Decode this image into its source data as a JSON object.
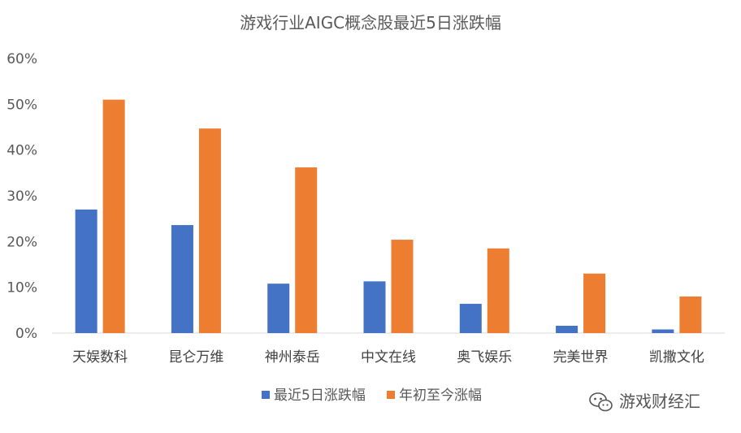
{
  "chart_data": {
    "type": "bar",
    "title": "游戏行业AIGC概念股最近5日涨跌幅",
    "categories": [
      "天娱数科",
      "昆仑万维",
      "神州泰岳",
      "中文在线",
      "奥飞娱乐",
      "完美世界",
      "凯撒文化"
    ],
    "series": [
      {
        "name": "最近5日涨跌幅",
        "color": "#4472C4",
        "values": [
          27.0,
          23.6,
          10.8,
          11.3,
          6.4,
          1.6,
          0.8
        ]
      },
      {
        "name": "年初至今涨幅",
        "color": "#ED7D31",
        "values": [
          51.0,
          44.7,
          36.2,
          20.4,
          18.5,
          13.0,
          8.0
        ]
      }
    ],
    "ylim": [
      0,
      60
    ],
    "yticks": [
      "0%",
      "10%",
      "20%",
      "30%",
      "40%",
      "50%",
      "60%"
    ],
    "grid": false,
    "legend": "bottom"
  },
  "watermark": {
    "text": "游戏财经汇",
    "icon": "wechat-icon"
  }
}
